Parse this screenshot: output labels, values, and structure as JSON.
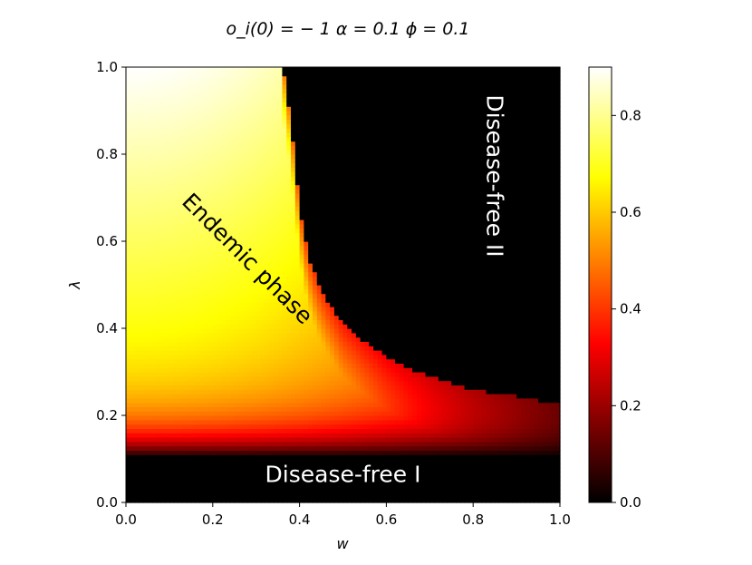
{
  "chart_data": {
    "type": "heatmap",
    "title": "o_i(0) = − 1 α = 0.1 ϕ = 0.1",
    "xlabel": "w",
    "ylabel": "λ",
    "xlim": [
      0.0,
      1.0
    ],
    "ylim": [
      0.0,
      1.0
    ],
    "x_ticks": [
      "0.0",
      "0.2",
      "0.4",
      "0.6",
      "0.8",
      "1.0"
    ],
    "y_ticks": [
      "0.0",
      "0.2",
      "0.4",
      "0.6",
      "0.8",
      "1.0"
    ],
    "colorbar": {
      "colormap": "hot",
      "range": [
        0.0,
        0.9
      ],
      "ticks": [
        "0.0",
        "0.2",
        "0.4",
        "0.6",
        "0.8"
      ]
    },
    "phase_boundary": {
      "w": [
        0.36,
        0.37,
        0.38,
        0.39,
        0.4,
        0.41,
        0.42,
        0.44,
        0.46,
        0.48,
        0.5,
        0.55,
        0.6,
        0.65,
        0.7,
        0.8,
        0.9,
        1.0
      ],
      "lambda": [
        1.0,
        0.95,
        0.87,
        0.78,
        0.68,
        0.62,
        0.57,
        0.51,
        0.47,
        0.44,
        0.41,
        0.37,
        0.335,
        0.31,
        0.29,
        0.26,
        0.245,
        0.225
      ]
    },
    "lower_threshold_lambda": 0.105,
    "annotations": [
      {
        "text": "Endemic phase",
        "w": 0.28,
        "lambda": 0.56,
        "rotation_deg": 45,
        "color": "#000000"
      },
      {
        "text": "Disease-free II",
        "w": 0.85,
        "lambda": 0.75,
        "rotation_deg": 90,
        "color": "#ffffff"
      },
      {
        "text": "Disease-free I",
        "w": 0.5,
        "lambda": 0.065,
        "rotation_deg": 0,
        "color": "#ffffff"
      }
    ]
  }
}
